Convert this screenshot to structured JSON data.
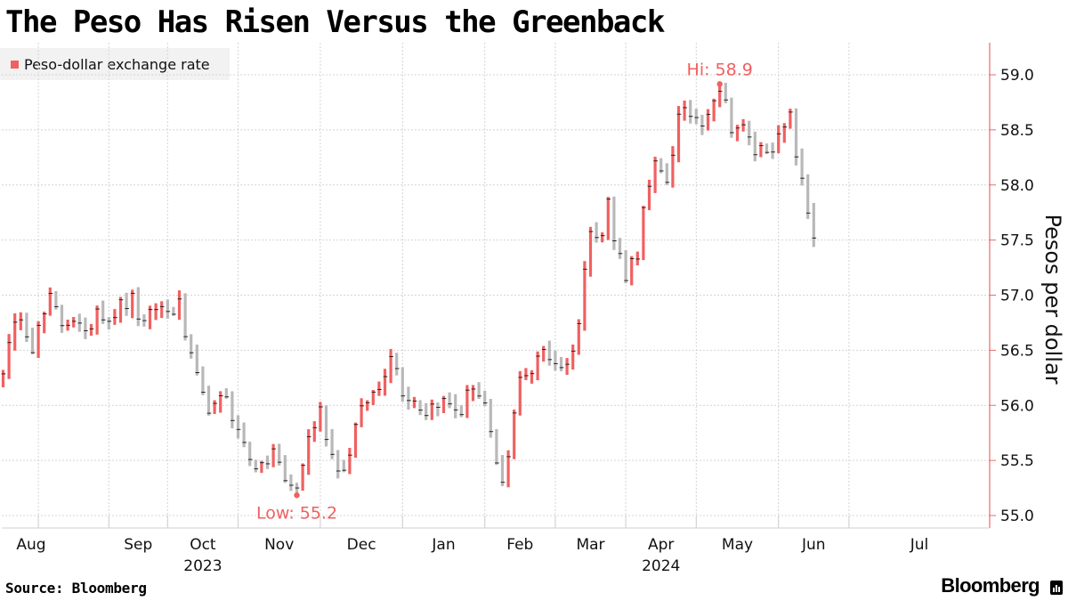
{
  "chart_data": {
    "type": "ohlc",
    "title": "The Peso Has Risen Versus the Greenback",
    "legend": [
      {
        "label": "Peso-dollar exchange rate",
        "color": "#f06060"
      }
    ],
    "ylabel": "Pesos per dollar",
    "ylim": [
      54.95,
      59.25
    ],
    "yticks": [
      55.0,
      55.5,
      56.0,
      56.5,
      57.0,
      57.5,
      58.0,
      58.5,
      59.0
    ],
    "ytick_labels": [
      "55.0",
      "55.5",
      "56.0",
      "56.5",
      "57.0",
      "57.5",
      "58.0",
      "58.5",
      "59.0"
    ],
    "x_months": [
      "Aug",
      "Sep",
      "Oct",
      "Nov",
      "Dec",
      "Jan",
      "Feb",
      "Mar",
      "Apr",
      "May",
      "Jun",
      "Jul"
    ],
    "x_years": [
      "2023",
      "2024"
    ],
    "annotations": {
      "low": {
        "label": "Low: 55.2",
        "value": 55.2
      },
      "high": {
        "label": "Hi: 58.9",
        "value": 58.9
      }
    },
    "up_color": "#f06060",
    "down_color": "#b8b8b8",
    "path": [
      [
        0,
        56.35
      ],
      [
        3,
        56.85
      ],
      [
        5,
        56.55
      ],
      [
        8,
        56.95
      ],
      [
        10,
        56.75
      ],
      [
        12,
        56.8
      ],
      [
        14,
        56.6
      ],
      [
        16,
        56.9
      ],
      [
        18,
        56.8
      ],
      [
        20,
        56.9
      ],
      [
        22,
        56.95
      ],
      [
        24,
        56.7
      ],
      [
        26,
        56.9
      ],
      [
        28,
        56.85
      ],
      [
        30,
        56.9
      ],
      [
        32,
        56.4
      ],
      [
        34,
        56.05
      ],
      [
        36,
        55.95
      ],
      [
        38,
        56.1
      ],
      [
        40,
        55.75
      ],
      [
        42,
        55.55
      ],
      [
        44,
        55.4
      ],
      [
        46,
        55.6
      ],
      [
        48,
        55.3
      ],
      [
        50,
        55.25
      ],
      [
        52,
        55.7
      ],
      [
        54,
        55.95
      ],
      [
        56,
        55.55
      ],
      [
        58,
        55.4
      ],
      [
        60,
        55.8
      ],
      [
        62,
        56.05
      ],
      [
        64,
        56.15
      ],
      [
        66,
        56.5
      ],
      [
        68,
        56.15
      ],
      [
        70,
        56.05
      ],
      [
        72,
        55.95
      ],
      [
        74,
        56.05
      ],
      [
        76,
        56.0
      ],
      [
        78,
        55.95
      ],
      [
        80,
        56.2
      ],
      [
        82,
        56.0
      ],
      [
        84,
        55.4
      ],
      [
        85,
        55.3
      ],
      [
        86,
        55.5
      ],
      [
        88,
        56.3
      ],
      [
        90,
        56.3
      ],
      [
        92,
        56.5
      ],
      [
        94,
        56.4
      ],
      [
        96,
        56.35
      ],
      [
        98,
        56.75
      ],
      [
        100,
        57.65
      ],
      [
        102,
        57.55
      ],
      [
        103,
        57.85
      ],
      [
        104,
        57.5
      ],
      [
        106,
        57.2
      ],
      [
        108,
        57.4
      ],
      [
        109,
        57.75
      ],
      [
        111,
        58.15
      ],
      [
        113,
        58.05
      ],
      [
        115,
        58.6
      ],
      [
        117,
        58.65
      ],
      [
        119,
        58.6
      ],
      [
        121,
        58.8
      ],
      [
        122,
        58.9
      ],
      [
        124,
        58.55
      ],
      [
        126,
        58.5
      ],
      [
        128,
        58.3
      ],
      [
        130,
        58.35
      ],
      [
        132,
        58.4
      ],
      [
        134,
        58.6
      ],
      [
        135,
        58.3
      ],
      [
        136,
        58.0
      ],
      [
        137,
        57.75
      ],
      [
        138,
        57.55
      ]
    ],
    "point_count": 139,
    "month_start_index": [
      6,
      18,
      28,
      40,
      54,
      68,
      82,
      94,
      106,
      118,
      132,
      144
    ],
    "low_index": 50,
    "high_index": 122,
    "seed": 12345
  },
  "footer": {
    "source": "Source: Bloomberg",
    "brand": "Bloomberg"
  }
}
